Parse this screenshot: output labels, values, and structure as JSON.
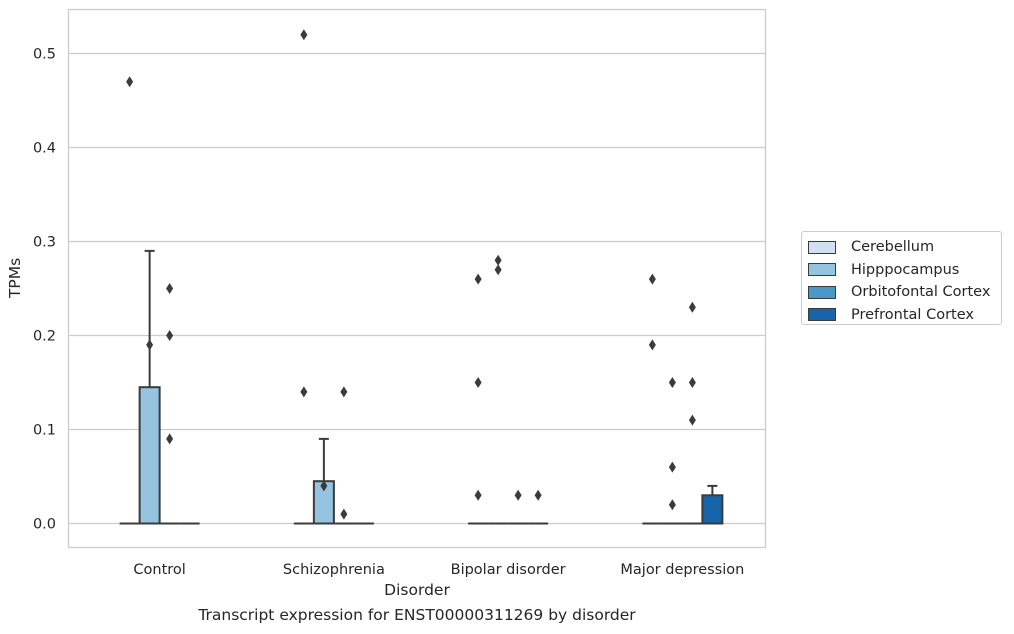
{
  "chart_data": {
    "type": "box",
    "xlabel": "Disorder",
    "ylabel": "TPMs",
    "caption": "Transcript expression for ENST00000311269 by disorder",
    "categories": [
      "Control",
      "Schizophrenia",
      "Bipolar disorder",
      "Major depression"
    ],
    "hue_order": [
      "Cerebellum",
      "Hipppocampus",
      "Orbitofontal Cortex",
      "Prefrontal Cortex"
    ],
    "colors": {
      "Cerebellum": "#d0e1f2",
      "Hipppocampus": "#94c4df",
      "Orbitofontal Cortex": "#4a98c9",
      "Prefrontal Cortex": "#1764ab"
    },
    "ylim": [
      -0.026,
      0.5
    ],
    "yticks": [
      0.0,
      0.1,
      0.2,
      0.3,
      0.4,
      0.5
    ],
    "ytick_labels": [
      "0.0",
      "0.1",
      "0.2",
      "0.3",
      "0.4",
      "0.5"
    ],
    "grid": true,
    "legend_position": "right, outside plot",
    "boxes": [
      {
        "category": "Control",
        "group": "Cerebellum",
        "q1": 0,
        "median": 0,
        "q3": 0,
        "whisker_low": 0,
        "whisker_high": 0,
        "outliers": [
          0.47
        ]
      },
      {
        "category": "Control",
        "group": "Hipppocampus",
        "q1": 0,
        "median": 0,
        "q3": 0.145,
        "whisker_low": 0,
        "whisker_high": 0.29,
        "outliers": [
          0.19
        ]
      },
      {
        "category": "Control",
        "group": "Orbitofontal Cortex",
        "q1": 0,
        "median": 0,
        "q3": 0,
        "whisker_low": 0,
        "whisker_high": 0,
        "outliers": [
          0.09,
          0.2,
          0.25
        ]
      },
      {
        "category": "Control",
        "group": "Prefrontal Cortex",
        "q1": 0,
        "median": 0,
        "q3": 0,
        "whisker_low": 0,
        "whisker_high": 0,
        "outliers": []
      },
      {
        "category": "Schizophrenia",
        "group": "Cerebellum",
        "q1": 0,
        "median": 0,
        "q3": 0,
        "whisker_low": 0,
        "whisker_high": 0,
        "outliers": [
          0.52,
          0.14
        ]
      },
      {
        "category": "Schizophrenia",
        "group": "Hipppocampus",
        "q1": 0,
        "median": 0,
        "q3": 0.045,
        "whisker_low": 0,
        "whisker_high": 0.09,
        "outliers": [
          0.04
        ]
      },
      {
        "category": "Schizophrenia",
        "group": "Orbitofontal Cortex",
        "q1": 0,
        "median": 0,
        "q3": 0,
        "whisker_low": 0,
        "whisker_high": 0,
        "outliers": [
          0.14,
          0.01
        ]
      },
      {
        "category": "Schizophrenia",
        "group": "Prefrontal Cortex",
        "q1": 0,
        "median": 0,
        "q3": 0,
        "whisker_low": 0,
        "whisker_high": 0,
        "outliers": []
      },
      {
        "category": "Bipolar disorder",
        "group": "Cerebellum",
        "q1": 0,
        "median": 0,
        "q3": 0,
        "whisker_low": 0,
        "whisker_high": 0,
        "outliers": [
          0.26,
          0.15,
          0.03
        ]
      },
      {
        "category": "Bipolar disorder",
        "group": "Hipppocampus",
        "q1": 0,
        "median": 0,
        "q3": 0,
        "whisker_low": 0,
        "whisker_high": 0,
        "outliers": [
          0.28,
          0.27
        ]
      },
      {
        "category": "Bipolar disorder",
        "group": "Orbitofontal Cortex",
        "q1": 0,
        "median": 0,
        "q3": 0,
        "whisker_low": 0,
        "whisker_high": 0,
        "outliers": [
          0.03
        ]
      },
      {
        "category": "Bipolar disorder",
        "group": "Prefrontal Cortex",
        "q1": 0,
        "median": 0,
        "q3": 0,
        "whisker_low": 0,
        "whisker_high": 0,
        "outliers": [
          0.03
        ]
      },
      {
        "category": "Major depression",
        "group": "Cerebellum",
        "q1": 0,
        "median": 0,
        "q3": 0,
        "whisker_low": 0,
        "whisker_high": 0,
        "outliers": [
          0.26,
          0.19
        ]
      },
      {
        "category": "Major depression",
        "group": "Hipppocampus",
        "q1": 0,
        "median": 0,
        "q3": 0,
        "whisker_low": 0,
        "whisker_high": 0,
        "outliers": [
          0.15,
          0.06,
          0.02
        ]
      },
      {
        "category": "Major depression",
        "group": "Orbitofontal Cortex",
        "q1": 0,
        "median": 0,
        "q3": 0,
        "whisker_low": 0,
        "whisker_high": 0,
        "outliers": [
          0.23,
          0.15,
          0.11
        ]
      },
      {
        "category": "Major depression",
        "group": "Prefrontal Cortex",
        "q1": 0,
        "median": 0,
        "q3": 0.03,
        "whisker_low": 0,
        "whisker_high": 0.04,
        "outliers": []
      }
    ]
  }
}
